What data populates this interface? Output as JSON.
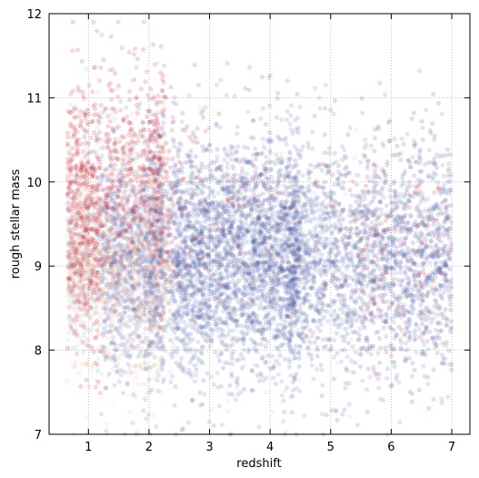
{
  "chart_data": {
    "type": "scatter",
    "xlabel": "redshift",
    "ylabel": "rough stellar mass",
    "xlim": [
      0.35,
      7.3
    ],
    "ylim": [
      7,
      12
    ],
    "xticks": [
      1,
      2,
      3,
      4,
      5,
      6,
      7
    ],
    "yticks": [
      7,
      8,
      9,
      10,
      11,
      12
    ],
    "grid": true,
    "grid_style": "dotted",
    "marker_alpha": 0.15,
    "colormap": [
      "#b40426",
      "#f4a582",
      "#fddbc7",
      "#d1e5f0",
      "#92c5de",
      "#4a5aa8",
      "#2b3a8f"
    ],
    "point_count": 9000,
    "distribution_summary": {
      "x_range": [
        0.6,
        7.0
      ],
      "y_range": [
        7.0,
        11.9
      ],
      "low_redshift_color": "red/orange (z < 2)",
      "high_redshift_color": "blue (z > 2)",
      "median_mass": 9.1
    }
  }
}
